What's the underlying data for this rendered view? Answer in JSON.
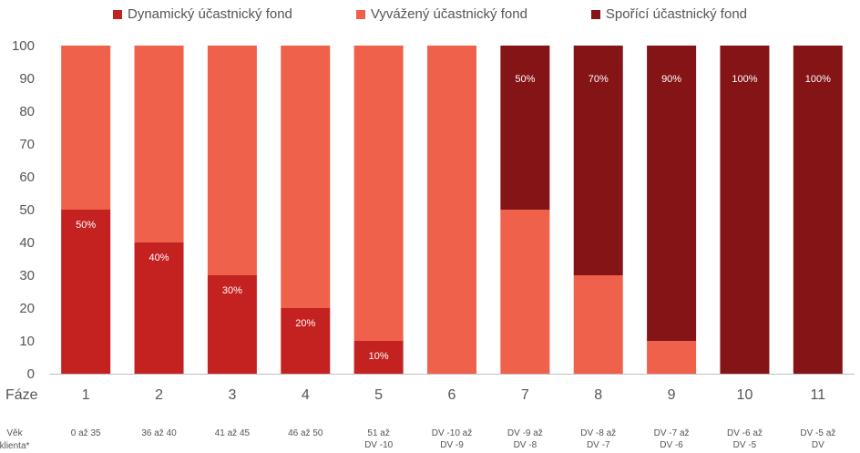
{
  "chart_data": {
    "type": "bar",
    "stacked": true,
    "categories": [
      "1",
      "2",
      "3",
      "4",
      "5",
      "6",
      "7",
      "8",
      "9",
      "10",
      "11"
    ],
    "category_axis_label": "Fáze",
    "age_row_label": "Věk klienta*",
    "age_ranges": [
      "0 až 35",
      "36 až 40",
      "41 až 45",
      "46 až 50",
      "51 až DV -10",
      "DV -10 až DV -9",
      "DV -9 až DV -8",
      "DV -8 až DV -7",
      "DV -7 až DV -6",
      "DV -6 až DV -5",
      "DV -5 až DV"
    ],
    "series": [
      {
        "name": "Dynamický účastnický fond",
        "color": "#c42221",
        "values": [
          50,
          40,
          30,
          20,
          10,
          0,
          0,
          0,
          0,
          0,
          0
        ]
      },
      {
        "name": "Vyvážený účastnický fond",
        "color": "#ef614a",
        "values": [
          50,
          60,
          70,
          80,
          90,
          100,
          50,
          30,
          10,
          0,
          0
        ]
      },
      {
        "name": "Spořící účastnický fond",
        "color": "#841416",
        "values": [
          0,
          0,
          0,
          0,
          0,
          0,
          50,
          70,
          90,
          100,
          100
        ]
      }
    ],
    "data_labels": [
      {
        "series": 0,
        "index": 0,
        "text": "50%"
      },
      {
        "series": 0,
        "index": 1,
        "text": "40%"
      },
      {
        "series": 0,
        "index": 2,
        "text": "30%"
      },
      {
        "series": 0,
        "index": 3,
        "text": "20%"
      },
      {
        "series": 0,
        "index": 4,
        "text": "10%"
      },
      {
        "series": 2,
        "index": 6,
        "text": "50%"
      },
      {
        "series": 2,
        "index": 7,
        "text": "70%"
      },
      {
        "series": 2,
        "index": 8,
        "text": "90%"
      },
      {
        "series": 2,
        "index": 9,
        "text": "100%"
      },
      {
        "series": 2,
        "index": 10,
        "text": "100%"
      }
    ],
    "ylim": [
      0,
      100
    ],
    "yticks": [
      0,
      10,
      20,
      30,
      40,
      50,
      60,
      70,
      80,
      90,
      100
    ],
    "grid": false,
    "legend_position": "top-center"
  }
}
